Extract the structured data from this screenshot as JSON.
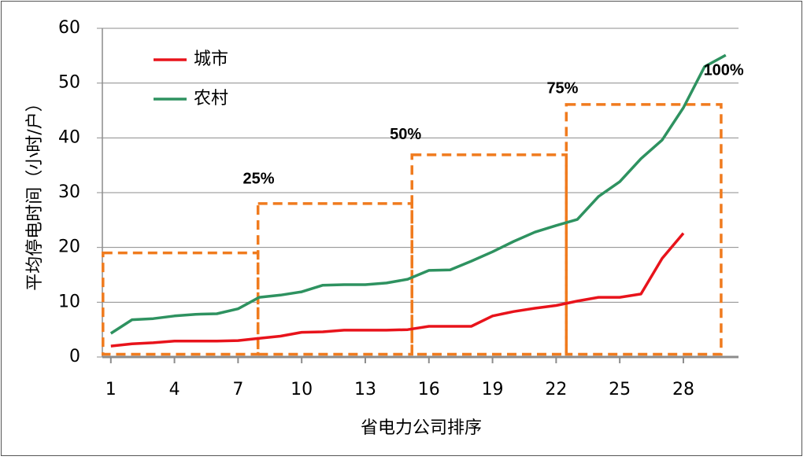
{
  "chart_data": {
    "type": "line",
    "x_label": "省电力公司排序",
    "y_label": "平均停电时间（小时/户）",
    "x": [
      1,
      2,
      3,
      4,
      5,
      6,
      7,
      8,
      9,
      10,
      11,
      12,
      13,
      14,
      15,
      16,
      17,
      18,
      19,
      20,
      21,
      22,
      23,
      24,
      25,
      26,
      27,
      28,
      29,
      30
    ],
    "series": [
      {
        "name": "城市",
        "color": "#e8131b",
        "values": [
          2.0,
          2.4,
          2.6,
          2.9,
          2.9,
          2.9,
          3.0,
          3.4,
          3.8,
          4.5,
          4.6,
          4.9,
          4.9,
          4.9,
          5.0,
          5.6,
          5.6,
          5.6,
          7.5,
          8.3,
          8.9,
          9.4,
          10.2,
          10.9,
          10.9,
          11.5,
          18.0,
          22.6,
          null,
          null
        ]
      },
      {
        "name": "农村",
        "color": "#2e9260",
        "values": [
          4.3,
          6.8,
          7.0,
          7.5,
          7.8,
          7.9,
          8.8,
          10.9,
          11.3,
          11.9,
          13.1,
          13.2,
          13.2,
          13.5,
          14.2,
          15.8,
          15.9,
          17.5,
          19.2,
          21.1,
          22.8,
          24.0,
          25.1,
          29.3,
          32.0,
          36.2,
          39.6,
          45.5,
          53.0,
          55.1
        ]
      }
    ],
    "xlim": [
      0.6,
      30.6
    ],
    "xticks": [
      1,
      4,
      7,
      10,
      13,
      16,
      19,
      22,
      25,
      28
    ],
    "ylim": [
      0,
      60
    ],
    "yticks": [
      0,
      10,
      20,
      30,
      40,
      50,
      60
    ],
    "grid": true,
    "legend": "upper-left",
    "boxes": {
      "color": "#f07b1e",
      "items": [
        {
          "x0": 0.63,
          "x1": 7.94,
          "bottom": 0.5,
          "top": 19
        },
        {
          "x0": 7.94,
          "x1": 15.2,
          "bottom": 0.5,
          "top": 28
        },
        {
          "x0": 15.2,
          "x1": 22.48,
          "bottom": 0.5,
          "top": 36.9
        },
        {
          "x0": 22.48,
          "x1": 29.78,
          "bottom": 0.5,
          "top": 46.1
        }
      ]
    },
    "annotations": [
      {
        "text": "25%",
        "x": 7.97,
        "y": 32.4
      },
      {
        "text": "50%",
        "x": 14.9,
        "y": 40.5
      },
      {
        "text": "75%",
        "x": 22.3,
        "y": 48.9
      },
      {
        "text": "100%",
        "x": 29.9,
        "y": 52.2
      }
    ]
  }
}
